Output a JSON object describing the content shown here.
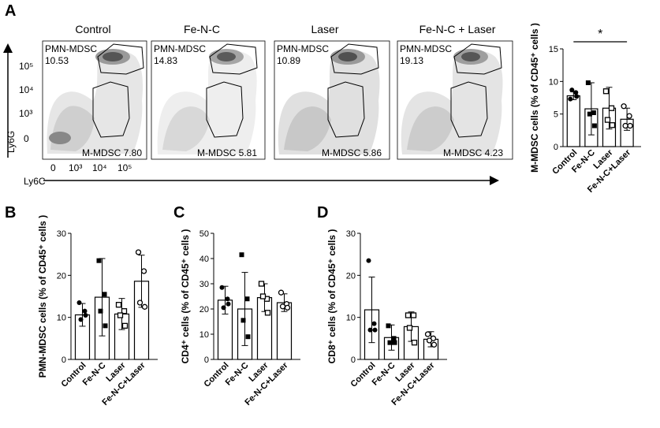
{
  "panel_labels": [
    "A",
    "B",
    "C",
    "D"
  ],
  "flow": {
    "y_axis_label": "Ly6G",
    "x_axis_label": "Ly6C",
    "y_ticks": [
      "10⁵",
      "10⁴",
      "10³",
      "0"
    ],
    "x_ticks": [
      "0",
      "10³",
      "10⁴",
      "10⁵"
    ],
    "plots": [
      {
        "title": "Control",
        "pmn_label": "PMN-MDSC",
        "pmn_value": "10.53",
        "m_text": "M-MDSC 7.80"
      },
      {
        "title": "Fe-N-C",
        "pmn_label": "PMN-MDSC",
        "pmn_value": "14.83",
        "m_text": "M-MDSC 5.81"
      },
      {
        "title": "Laser",
        "pmn_label": "PMN-MDSC",
        "pmn_value": "10.89",
        "m_text": "M-MDSC 5.86"
      },
      {
        "title": "Fe-N-C + Laser",
        "pmn_label": "PMN-MDSC",
        "pmn_value": "19.13",
        "m_text": "M-MDSC 4.23"
      }
    ]
  },
  "chart_data": [
    {
      "panel": "A",
      "type": "bar",
      "categories": [
        "Control",
        "Fe-N-C",
        "Laser",
        "Fe-N-C+Laser"
      ],
      "values": [
        7.8,
        5.8,
        5.9,
        4.2
      ],
      "errors": [
        0.6,
        4.0,
        3.2,
        1.7
      ],
      "points": [
        [
          7.3,
          8.3,
          8.7,
          7.7
        ],
        [
          9.8,
          5.2,
          5.0,
          3.2
        ],
        [
          8.5,
          5.9,
          4.1,
          3.3
        ],
        [
          6.2,
          4.7,
          3.2,
          3.2
        ]
      ],
      "markers": [
        "circle",
        "square",
        "square-open",
        "circle-open"
      ],
      "ylabel": "M-MDSC cells (% of CD45⁺ cells )",
      "ylim": [
        0,
        15
      ],
      "yticks": [
        "0",
        "5",
        "10",
        "15"
      ],
      "significance": "*"
    },
    {
      "panel": "B",
      "type": "bar",
      "categories": [
        "Control",
        "Fe-N-C",
        "Laser",
        "Fe-N-C+Laser"
      ],
      "values": [
        10.6,
        14.8,
        10.8,
        18.6
      ],
      "errors": [
        2.7,
        9.2,
        3.7,
        6.2
      ],
      "points": [
        [
          13.5,
          11.5,
          9.5,
          10.5
        ],
        [
          23.5,
          15.5,
          11.5,
          8.0
        ],
        [
          13.0,
          11.5,
          10.5,
          8.0
        ],
        [
          25.5,
          21.0,
          13.5,
          12.5
        ]
      ],
      "markers": [
        "circle",
        "square",
        "square-open",
        "circle-open"
      ],
      "ylabel": "PMN-MDSC cells (% of CD45⁺ cells )",
      "ylim": [
        0,
        30
      ],
      "yticks": [
        "0",
        "10",
        "20",
        "30"
      ]
    },
    {
      "panel": "C",
      "type": "bar",
      "categories": [
        "Control",
        "Fe-N-C",
        "Laser",
        "Fe-N-C+Laser"
      ],
      "values": [
        23.5,
        20.0,
        24.5,
        22.5
      ],
      "errors": [
        5.5,
        14.5,
        5.5,
        3.5
      ],
      "points": [
        [
          28.5,
          24.0,
          20.5,
          22.0
        ],
        [
          41.5,
          24.0,
          15.5,
          9.0
        ],
        [
          30.0,
          24.0,
          25.0,
          18.5
        ],
        [
          26.5,
          22.0,
          21.0,
          20.5
        ]
      ],
      "markers": [
        "circle",
        "square",
        "square-open",
        "circle-open"
      ],
      "ylabel": "CD4⁺ cells (% of CD45⁺ cells )",
      "ylim": [
        0,
        50
      ],
      "yticks": [
        "0",
        "10",
        "20",
        "30",
        "40",
        "50"
      ]
    },
    {
      "panel": "D",
      "type": "bar",
      "categories": [
        "Control",
        "Fe-N-C",
        "Laser",
        "Fe-N-C+Laser"
      ],
      "values": [
        11.8,
        5.2,
        7.8,
        4.8
      ],
      "errors": [
        7.8,
        3.0,
        3.5,
        1.8
      ],
      "points": [
        [
          23.5,
          8.5,
          7.0,
          7.0
        ],
        [
          8.0,
          5.0,
          4.0,
          4.0
        ],
        [
          10.5,
          10.5,
          7.5,
          4.0
        ],
        [
          6.0,
          5.0,
          4.5,
          3.5
        ]
      ],
      "markers": [
        "circle",
        "square",
        "square-open",
        "circle-open"
      ],
      "ylabel": "CD8⁺ cells (% of CD45⁺ cells )",
      "ylim": [
        0,
        30
      ],
      "yticks": [
        "0",
        "10",
        "20",
        "30"
      ]
    }
  ]
}
